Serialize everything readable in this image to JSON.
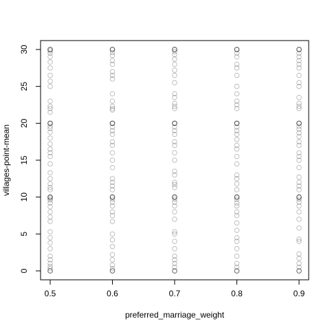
{
  "chart_data": {
    "type": "scatter",
    "xlabel": "preferred_marriage_weight",
    "ylabel": "villages-point-mean",
    "title": "",
    "xlim": [
      0.5,
      0.9
    ],
    "ylim": [
      0,
      30
    ],
    "x_ticks": [
      0.5,
      0.6,
      0.7,
      0.8,
      0.9
    ],
    "x_tick_labels": [
      "0.5",
      "0.6",
      "0.7",
      "0.8",
      "0.9"
    ],
    "y_ticks": [
      0,
      5,
      10,
      15,
      20,
      25,
      30
    ],
    "y_tick_labels": [
      "0",
      "5",
      "10",
      "15",
      "20",
      "25",
      "30"
    ],
    "grid": false,
    "point_color": "#000000",
    "x_values": [
      0.5,
      0.6,
      0.7,
      0.8,
      0.9
    ],
    "y_values_per_x": [
      [
        0,
        0,
        0,
        0.3,
        0.6,
        1,
        1.5,
        2,
        3,
        3.8,
        4.5,
        5.3,
        6.7,
        7.3,
        8,
        8.7,
        9.2,
        9.6,
        9.8,
        10,
        10,
        10,
        10,
        11,
        11.3,
        11.8,
        12.5,
        13.3,
        14.5,
        15.5,
        16,
        16.5,
        17.2,
        18,
        18.8,
        19.3,
        19.6,
        20,
        20,
        20,
        20,
        21.5,
        22,
        22.3,
        23,
        25,
        25.7,
        26.5,
        27.5,
        28.3,
        29,
        29.5,
        29.8,
        30,
        30,
        30,
        30
      ],
      [
        0,
        0,
        0,
        0.3,
        0.8,
        1.5,
        2.2,
        3.3,
        4.2,
        5,
        6.7,
        7.5,
        8,
        8.8,
        9.3,
        9.7,
        10,
        10,
        10,
        10,
        11,
        11.5,
        12,
        12.5,
        14,
        15,
        16,
        17,
        17.5,
        18.5,
        19,
        19.5,
        20,
        20,
        20,
        20,
        21.8,
        22,
        22.3,
        23,
        24,
        26,
        26.5,
        27,
        28,
        28.5,
        29.2,
        29.6,
        30,
        30,
        30,
        30
      ],
      [
        0,
        0,
        0,
        0.5,
        1,
        1.5,
        2,
        3,
        4,
        5,
        5.3,
        7,
        8,
        8.8,
        9.3,
        9.7,
        10,
        10,
        10,
        10,
        11.3,
        11.7,
        12,
        13,
        13.5,
        15,
        16,
        17,
        17.5,
        18.5,
        19,
        19.5,
        20,
        20,
        20,
        20,
        22,
        22.3,
        22.7,
        23.5,
        24,
        25.5,
        26.5,
        27.2,
        28,
        28.7,
        29.3,
        29.7,
        30,
        30,
        30,
        30
      ],
      [
        0,
        0,
        0,
        0.5,
        1,
        2,
        3,
        4,
        4.5,
        5.5,
        6.5,
        7.5,
        8,
        8.8,
        9.2,
        9.7,
        10,
        10,
        10,
        10,
        11,
        11.8,
        12.5,
        13,
        14.5,
        15.5,
        16.5,
        17,
        17.8,
        18.5,
        19,
        19.5,
        20,
        20,
        20,
        20,
        22,
        22.5,
        23,
        24,
        25,
        26.5,
        27.5,
        28,
        29,
        29.5,
        30,
        30,
        30,
        30
      ],
      [
        0,
        0,
        0,
        0.5,
        1,
        1.7,
        2.3,
        4,
        4.3,
        5.8,
        7,
        8,
        8.8,
        9.3,
        9.7,
        10,
        10,
        10,
        10,
        11,
        11.5,
        12,
        12.7,
        14,
        15,
        15.5,
        16,
        17,
        17.5,
        18.2,
        18.7,
        19.2,
        19.6,
        20,
        20,
        20,
        20,
        22,
        22.3,
        22.7,
        23.5,
        25,
        25.5,
        26.5,
        27.5,
        28,
        28.5,
        29,
        29.5,
        30,
        30,
        30,
        30
      ]
    ]
  }
}
